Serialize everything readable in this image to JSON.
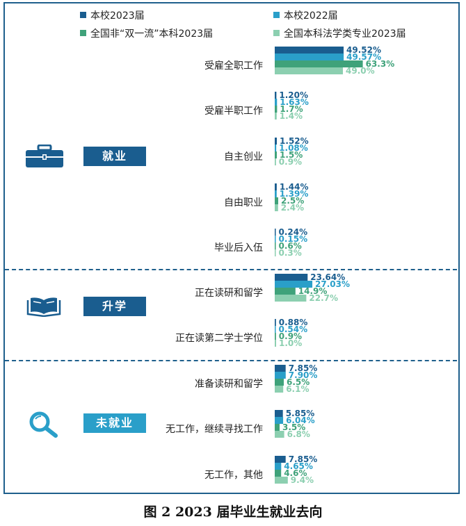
{
  "caption": "图 2    2023 届毕业生就业去向",
  "sections": [
    {
      "label": "就业",
      "icon": "briefcase-icon"
    },
    {
      "label": "升学",
      "icon": "open-book-icon"
    },
    {
      "label": "未就业",
      "icon": "magnifier-icon"
    }
  ],
  "chart_data": {
    "type": "bar",
    "orientation": "horizontal",
    "categories": [
      "受雇全职工作",
      "受雇半职工作",
      "自主创业",
      "自由职业",
      "毕业后入伍",
      "正在读研和留学",
      "正在读第二学士学位",
      "准备读研和留学",
      "无工作，继续寻找工作",
      "无工作，其他"
    ],
    "groups": [
      {
        "label": "就业",
        "categories": [
          "受雇全职工作",
          "受雇半职工作",
          "自主创业",
          "自由职业",
          "毕业后入伍"
        ]
      },
      {
        "label": "升学",
        "categories": [
          "正在读研和留学",
          "正在读第二学士学位"
        ]
      },
      {
        "label": "未就业",
        "categories": [
          "准备读研和留学",
          "无工作，继续寻找工作",
          "无工作，其他"
        ]
      }
    ],
    "series": [
      {
        "name": "本校2023届",
        "color": "#1a5d8f",
        "values": [
          49.52,
          1.2,
          1.52,
          1.44,
          0.24,
          23.64,
          0.88,
          7.85,
          5.85,
          7.85
        ],
        "labels": [
          "49.52%",
          "1.20%",
          "1.52%",
          "1.44%",
          "0.24%",
          "23.64%",
          "0.88%",
          "7.85%",
          "5.85%",
          "7.85%"
        ]
      },
      {
        "name": "本校2022届",
        "color": "#2a9fc9",
        "values": [
          49.57,
          1.63,
          1.08,
          1.39,
          0.15,
          27.03,
          0.54,
          7.9,
          6.04,
          4.65
        ],
        "labels": [
          "49.57%",
          "1.63%",
          "1.08%",
          "1.39%",
          "0.15%",
          "27.03%",
          "0.54%",
          "7.90%",
          "6.04%",
          "4.65%"
        ]
      },
      {
        "name": "全国非“双一流”本科2023届",
        "color": "#3fa27a",
        "values": [
          63.3,
          1.7,
          1.5,
          2.5,
          0.6,
          14.9,
          0.9,
          6.5,
          3.5,
          4.6
        ],
        "labels": [
          "63.3%",
          "1.7%",
          "1.5%",
          "2.5%",
          "0.6%",
          "14.9%",
          "0.9%",
          "6.5%",
          "3.5%",
          "4.6%"
        ]
      },
      {
        "name": "全国本科法学类专业2023届",
        "color": "#8ccfb0",
        "values": [
          49.0,
          1.4,
          0.9,
          2.4,
          0.3,
          22.7,
          1.0,
          6.1,
          6.8,
          9.4
        ],
        "labels": [
          "49.0%",
          "1.4%",
          "0.9%",
          "2.4%",
          "0.3%",
          "22.7%",
          "1.0%",
          "6.1%",
          "6.8%",
          "9.4%"
        ]
      }
    ],
    "xlim": [
      0,
      100
    ],
    "grid": false,
    "legend": "top"
  }
}
